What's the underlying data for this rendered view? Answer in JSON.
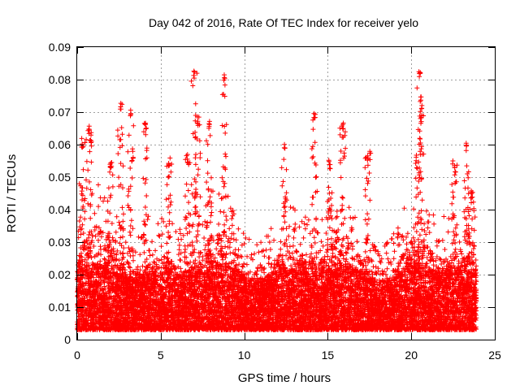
{
  "chart_data": {
    "type": "scatter",
    "title": "Day 042 of 2016, Rate Of TEC Index for receiver yelo",
    "xlabel": "GPS time / hours",
    "ylabel": "ROTI / TECUs",
    "xlim": [
      0,
      25
    ],
    "ylim": [
      0,
      0.09
    ],
    "x_ticks": [
      0,
      5,
      10,
      15,
      20,
      25
    ],
    "x_tick_labels": [
      "0",
      "5",
      "10",
      "15",
      "20",
      "25"
    ],
    "y_ticks": [
      0,
      0.01,
      0.02,
      0.03,
      0.04,
      0.05,
      0.06,
      0.07,
      0.08,
      0.09
    ],
    "y_tick_labels": [
      "0",
      "0.01",
      "0.02",
      "0.03",
      "0.04",
      "0.05",
      "0.06",
      "0.07",
      "0.08",
      "0.09"
    ],
    "grid": true,
    "marker": "+",
    "color": "#ff0000",
    "series": [
      {
        "name": "ROTI",
        "x_range": [
          0.0,
          23.9
        ],
        "typical_range": [
          0.003,
          0.03
        ],
        "peaks": [
          {
            "x": 0.3,
            "y": 0.062
          },
          {
            "x": 0.7,
            "y": 0.067
          },
          {
            "x": 2.0,
            "y": 0.055
          },
          {
            "x": 2.6,
            "y": 0.073
          },
          {
            "x": 3.2,
            "y": 0.071
          },
          {
            "x": 4.1,
            "y": 0.067
          },
          {
            "x": 5.5,
            "y": 0.056
          },
          {
            "x": 6.6,
            "y": 0.057
          },
          {
            "x": 7.0,
            "y": 0.083
          },
          {
            "x": 7.2,
            "y": 0.069
          },
          {
            "x": 7.9,
            "y": 0.068
          },
          {
            "x": 8.8,
            "y": 0.082
          },
          {
            "x": 12.4,
            "y": 0.061
          },
          {
            "x": 14.2,
            "y": 0.071
          },
          {
            "x": 15.1,
            "y": 0.056
          },
          {
            "x": 15.9,
            "y": 0.067
          },
          {
            "x": 17.4,
            "y": 0.058
          },
          {
            "x": 20.3,
            "y": 0.057
          },
          {
            "x": 20.5,
            "y": 0.083
          },
          {
            "x": 20.6,
            "y": 0.074
          },
          {
            "x": 22.6,
            "y": 0.055
          },
          {
            "x": 23.3,
            "y": 0.061
          },
          {
            "x": 23.6,
            "y": 0.046
          }
        ]
      }
    ]
  }
}
